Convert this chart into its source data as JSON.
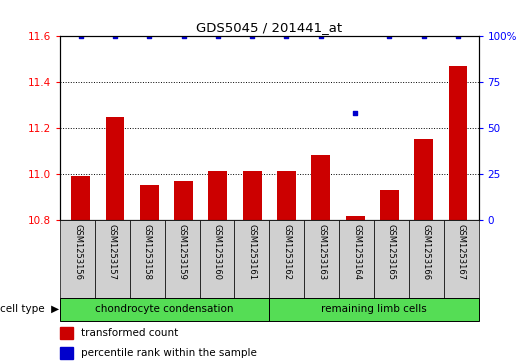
{
  "title": "GDS5045 / 201441_at",
  "samples": [
    "GSM1253156",
    "GSM1253157",
    "GSM1253158",
    "GSM1253159",
    "GSM1253160",
    "GSM1253161",
    "GSM1253162",
    "GSM1253163",
    "GSM1253164",
    "GSM1253165",
    "GSM1253166",
    "GSM1253167"
  ],
  "bar_values": [
    10.99,
    11.25,
    10.95,
    10.97,
    11.01,
    11.01,
    11.01,
    11.08,
    10.815,
    10.93,
    11.15,
    11.47
  ],
  "percentile_values": [
    100,
    100,
    100,
    100,
    100,
    100,
    100,
    100,
    58,
    100,
    100,
    100
  ],
  "bar_color": "#cc0000",
  "percentile_color": "#0000cc",
  "ylim_left": [
    10.8,
    11.6
  ],
  "ylim_right": [
    0,
    100
  ],
  "yticks_left": [
    10.8,
    11.0,
    11.2,
    11.4,
    11.6
  ],
  "yticks_right": [
    0,
    25,
    50,
    75,
    100
  ],
  "group1_label": "chondrocyte condensation",
  "group2_label": "remaining limb cells",
  "group1_color": "#55dd55",
  "group2_color": "#55dd55",
  "cell_type_label": "cell type",
  "legend_bar_label": "transformed count",
  "legend_percentile_label": "percentile rank within the sample",
  "group1_count": 6,
  "group2_count": 6,
  "background_color": "#d0d0d0",
  "plot_bg_color": "#ffffff"
}
